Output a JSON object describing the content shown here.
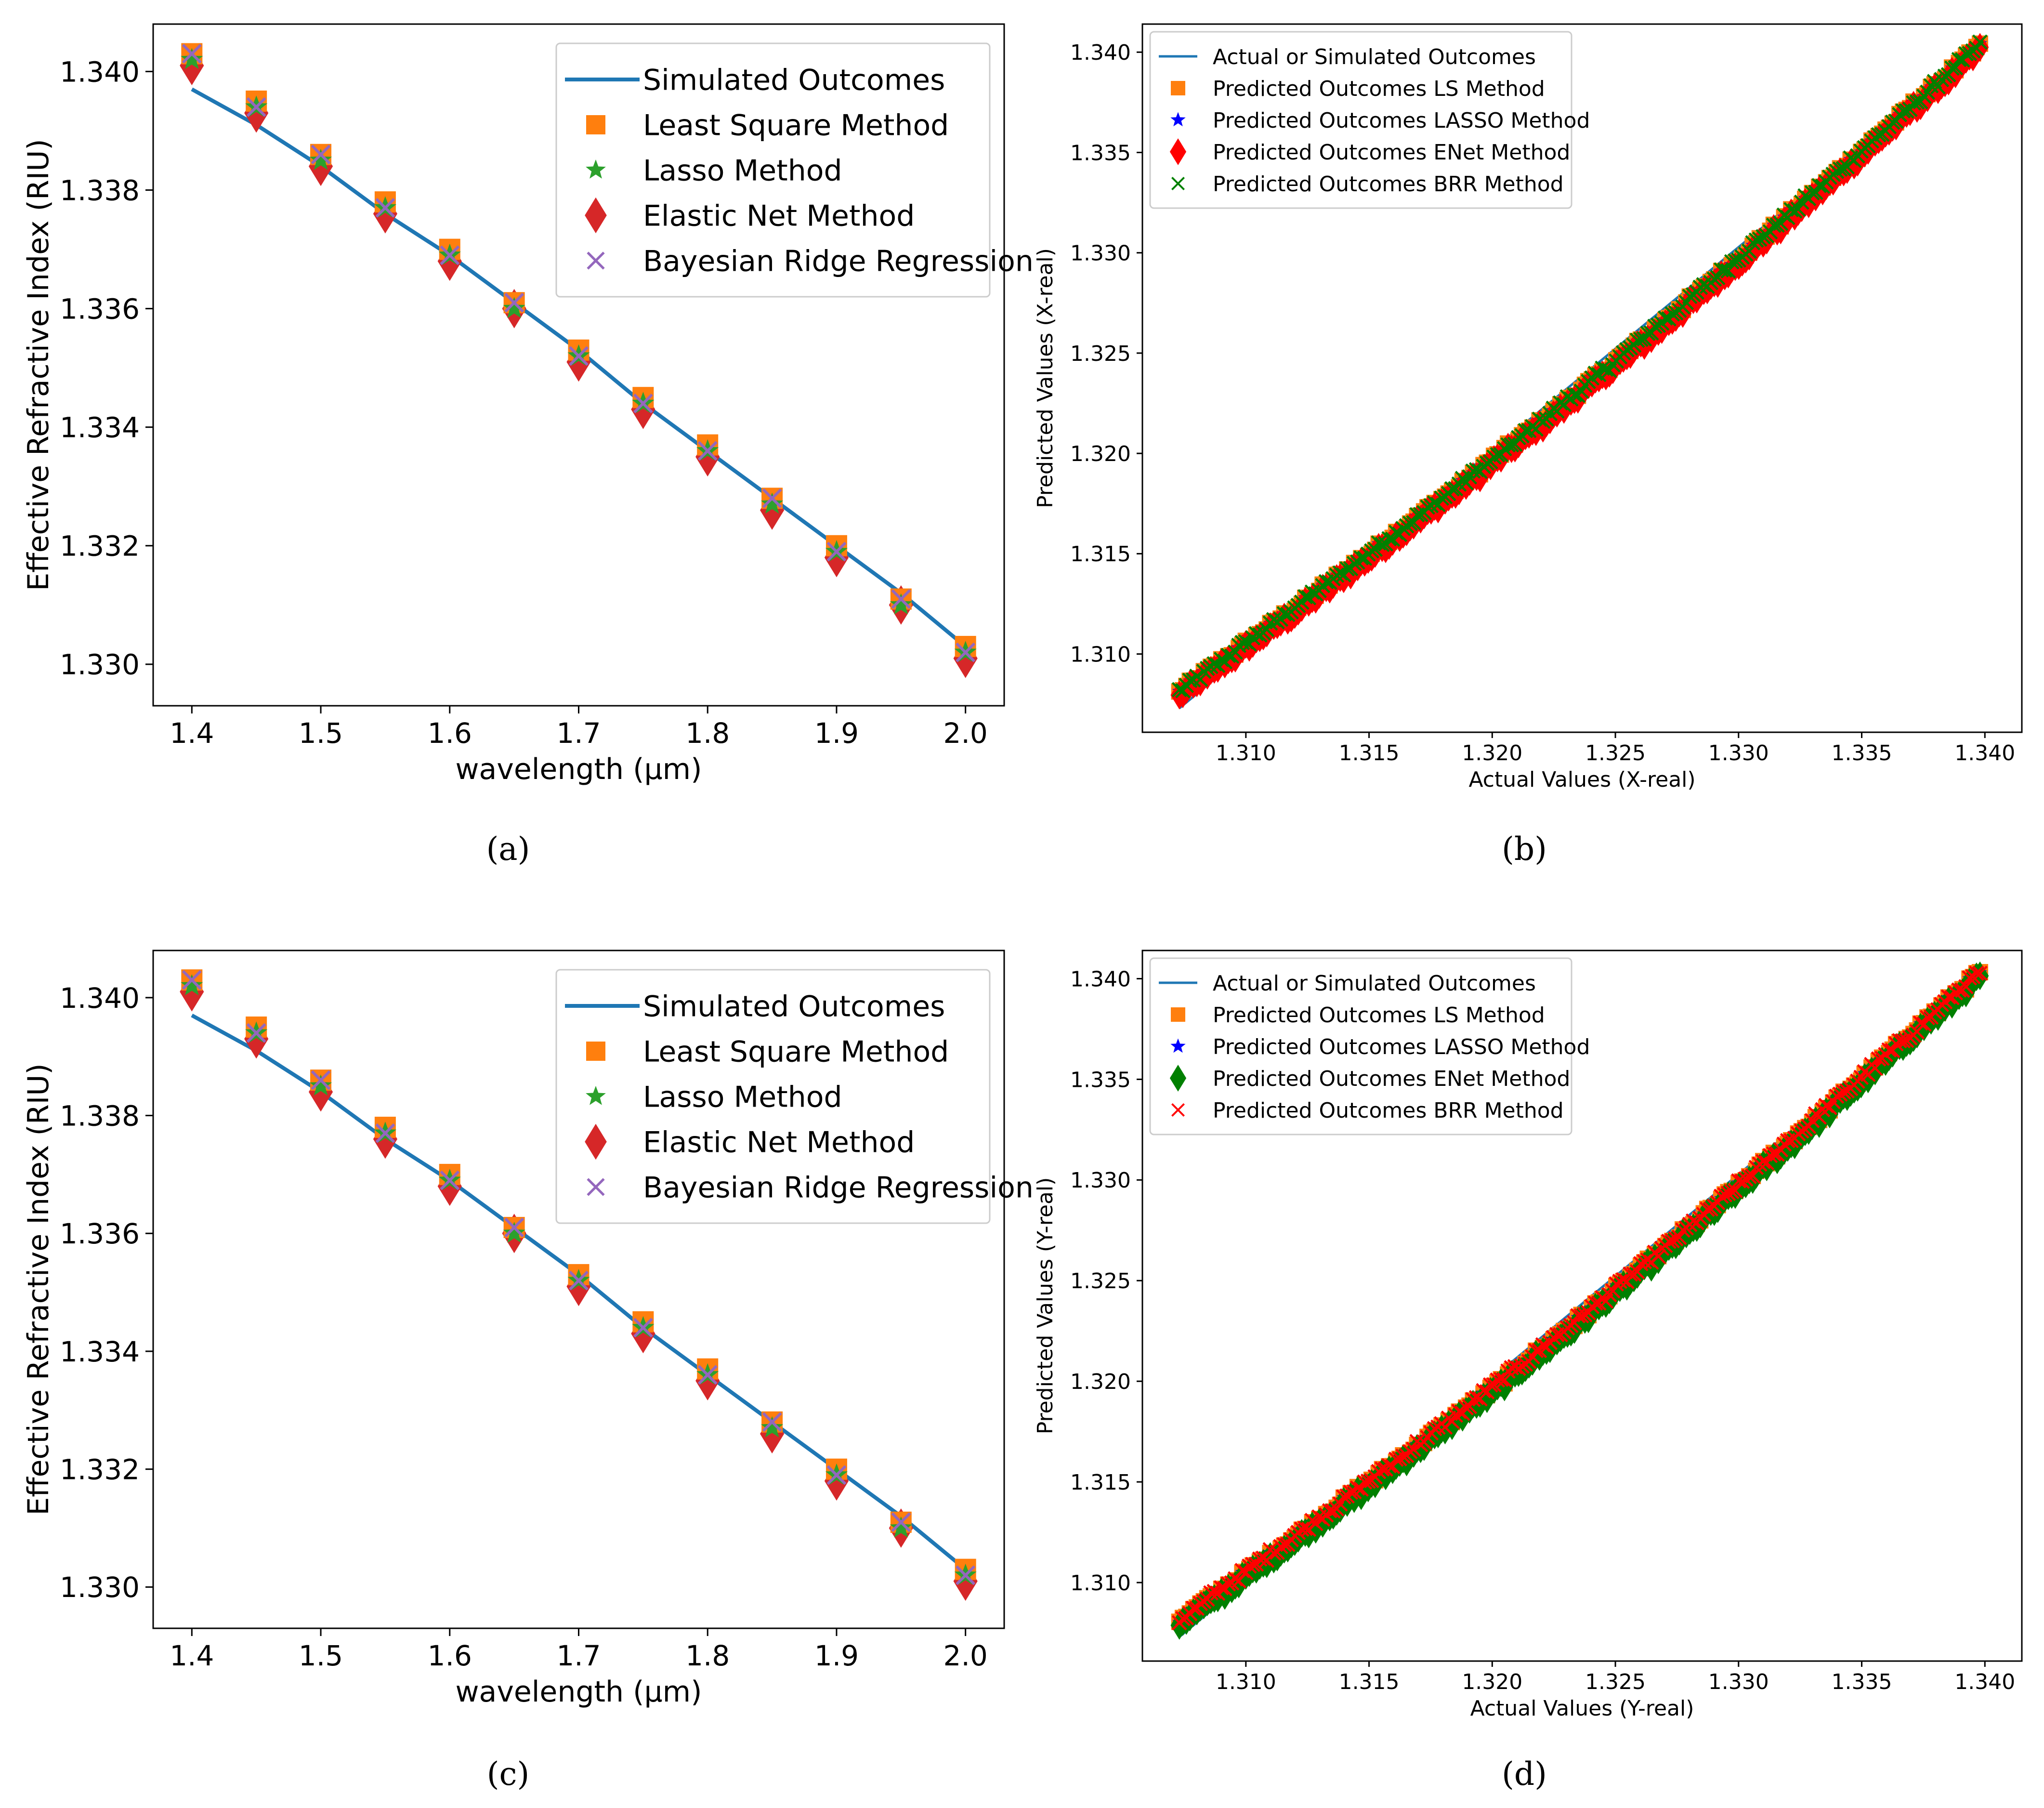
{
  "colors": {
    "sim_line": "#1f77b4",
    "ls": "#ff7f0e",
    "lasso": "#2ca02c",
    "enet": "#d62728",
    "brr": "#9467bd",
    "blue": "#0000ff",
    "red": "#ff0000",
    "green": "#008000"
  },
  "chart_data": [
    {
      "panel": "a",
      "caption": "(a)",
      "type": "line+scatter",
      "xlabel": "wavelength (μm)",
      "ylabel": "Effective Refractive Index (RIU)",
      "xlim": [
        1.37,
        2.03
      ],
      "ylim": [
        1.3293,
        1.3408
      ],
      "xticks": [
        1.4,
        1.5,
        1.6,
        1.7,
        1.8,
        1.9,
        2.0
      ],
      "xtick_labels": [
        "1.4",
        "1.5",
        "1.6",
        "1.7",
        "1.8",
        "1.9",
        "2.0"
      ],
      "yticks": [
        1.33,
        1.332,
        1.334,
        1.336,
        1.338,
        1.34
      ],
      "ytick_labels": [
        "1.330",
        "1.332",
        "1.334",
        "1.336",
        "1.338",
        "1.340"
      ],
      "legend_position": "top-right",
      "x": [
        1.4,
        1.45,
        1.5,
        1.55,
        1.6,
        1.65,
        1.7,
        1.75,
        1.8,
        1.85,
        1.9,
        1.95,
        2.0
      ],
      "series": [
        {
          "name": "Simulated Outcomes",
          "kind": "line",
          "color": "sim_line",
          "values": [
            1.3397,
            1.3391,
            1.3384,
            1.3376,
            1.3369,
            1.3361,
            1.3353,
            1.3344,
            1.3336,
            1.3328,
            1.332,
            1.3312,
            1.3303
          ]
        },
        {
          "name": "Least Square Method",
          "kind": "marker",
          "marker": "square",
          "color": "ls",
          "values": [
            1.3403,
            1.3395,
            1.3386,
            1.3378,
            1.337,
            1.3361,
            1.3353,
            1.3345,
            1.3337,
            1.3328,
            1.332,
            1.3311,
            1.3303
          ]
        },
        {
          "name": "Lasso Method",
          "kind": "marker",
          "marker": "star",
          "color": "lasso",
          "values": [
            1.3402,
            1.3394,
            1.3385,
            1.3377,
            1.3369,
            1.336,
            1.3352,
            1.3344,
            1.3336,
            1.3327,
            1.3319,
            1.331,
            1.3302
          ]
        },
        {
          "name": "Elastic Net Method",
          "kind": "marker",
          "marker": "thin_diamond",
          "color": "enet",
          "values": [
            1.3401,
            1.3393,
            1.3384,
            1.3376,
            1.3368,
            1.336,
            1.3351,
            1.3343,
            1.3335,
            1.3326,
            1.3318,
            1.331,
            1.3301
          ]
        },
        {
          "name": "Bayesian Ridge Regression",
          "kind": "marker",
          "marker": "x",
          "color": "brr",
          "values": [
            1.3403,
            1.3394,
            1.3386,
            1.3377,
            1.3369,
            1.3361,
            1.3352,
            1.3344,
            1.3336,
            1.3328,
            1.3319,
            1.3311,
            1.3302
          ]
        }
      ]
    },
    {
      "panel": "b",
      "caption": "(b)",
      "type": "line+scatter",
      "xlabel": "Actual Values (X-real)",
      "ylabel": "Predicted Values (X-real)",
      "xlim": [
        1.3058,
        1.3415
      ],
      "ylim": [
        1.3061,
        1.3414
      ],
      "xticks": [
        1.31,
        1.315,
        1.32,
        1.325,
        1.33,
        1.335,
        1.34
      ],
      "xtick_labels": [
        "1.310",
        "1.315",
        "1.320",
        "1.325",
        "1.330",
        "1.335",
        "1.340"
      ],
      "yticks": [
        1.31,
        1.315,
        1.32,
        1.325,
        1.33,
        1.335,
        1.34
      ],
      "ytick_labels": [
        "1.310",
        "1.315",
        "1.320",
        "1.325",
        "1.330",
        "1.335",
        "1.340"
      ],
      "legend_position": "top-left",
      "actual_range": [
        1.3073,
        1.3398
      ],
      "predicted_range": [
        1.3081,
        1.3403
      ],
      "series": [
        {
          "name": "Actual or Simulated Outcomes",
          "kind": "line",
          "color": "sim_line"
        },
        {
          "name": "Predicted Outcomes LS Method",
          "kind": "marker",
          "marker": "square",
          "color": "ls"
        },
        {
          "name": "Predicted Outcomes LASSO Method",
          "kind": "marker",
          "marker": "star",
          "color": "blue"
        },
        {
          "name": "Predicted Outcomes ENet Method",
          "kind": "marker",
          "marker": "thin_diamond",
          "color": "red"
        },
        {
          "name": " Predicted Outcomes BRR Method",
          "kind": "marker",
          "marker": "x",
          "color": "green"
        }
      ],
      "draw_order": [
        "ls",
        "lasso",
        "enet",
        "brr"
      ]
    },
    {
      "panel": "c",
      "caption": "(c)",
      "type": "line+scatter",
      "xlabel": "wavelength (μm)",
      "ylabel": "Effective Refractive Index (RIU)",
      "xlim": [
        1.37,
        2.03
      ],
      "ylim": [
        1.3293,
        1.3408
      ],
      "xticks": [
        1.4,
        1.5,
        1.6,
        1.7,
        1.8,
        1.9,
        2.0
      ],
      "xtick_labels": [
        "1.4",
        "1.5",
        "1.6",
        "1.7",
        "1.8",
        "1.9",
        "2.0"
      ],
      "yticks": [
        1.33,
        1.332,
        1.334,
        1.336,
        1.338,
        1.34
      ],
      "ytick_labels": [
        "1.330",
        "1.332",
        "1.334",
        "1.336",
        "1.338",
        "1.340"
      ],
      "legend_position": "top-right",
      "x": [
        1.4,
        1.45,
        1.5,
        1.55,
        1.6,
        1.65,
        1.7,
        1.75,
        1.8,
        1.85,
        1.9,
        1.95,
        2.0
      ],
      "series": [
        {
          "name": "Simulated Outcomes",
          "kind": "line",
          "color": "sim_line",
          "values": [
            1.3397,
            1.3391,
            1.3384,
            1.3376,
            1.3369,
            1.3361,
            1.3353,
            1.3344,
            1.3336,
            1.3328,
            1.332,
            1.3312,
            1.3303
          ]
        },
        {
          "name": "Least Square Method",
          "kind": "marker",
          "marker": "square",
          "color": "ls",
          "values": [
            1.3403,
            1.3395,
            1.3386,
            1.3378,
            1.337,
            1.3361,
            1.3353,
            1.3345,
            1.3337,
            1.3328,
            1.332,
            1.3311,
            1.3303
          ]
        },
        {
          "name": "Lasso Method",
          "kind": "marker",
          "marker": "star",
          "color": "lasso",
          "values": [
            1.3402,
            1.3394,
            1.3385,
            1.3377,
            1.3369,
            1.336,
            1.3352,
            1.3344,
            1.3336,
            1.3327,
            1.3319,
            1.331,
            1.3302
          ]
        },
        {
          "name": "Elastic Net Method",
          "kind": "marker",
          "marker": "thin_diamond",
          "color": "enet",
          "values": [
            1.3401,
            1.3393,
            1.3384,
            1.3376,
            1.3368,
            1.336,
            1.3351,
            1.3343,
            1.3335,
            1.3326,
            1.3318,
            1.331,
            1.3301
          ]
        },
        {
          "name": "Bayesian Ridge Regression",
          "kind": "marker",
          "marker": "x",
          "color": "brr",
          "values": [
            1.3403,
            1.3394,
            1.3386,
            1.3377,
            1.3369,
            1.3361,
            1.3352,
            1.3344,
            1.3336,
            1.3328,
            1.3319,
            1.3311,
            1.3302
          ]
        }
      ]
    },
    {
      "panel": "d",
      "caption": "(d)",
      "type": "line+scatter",
      "xlabel": "Actual Values (Y-real)",
      "ylabel": "Predicted Values (Y-real)",
      "xlim": [
        1.3058,
        1.3415
      ],
      "ylim": [
        1.3061,
        1.3414
      ],
      "xticks": [
        1.31,
        1.315,
        1.32,
        1.325,
        1.33,
        1.335,
        1.34
      ],
      "xtick_labels": [
        "1.310",
        "1.315",
        "1.320",
        "1.325",
        "1.330",
        "1.335",
        "1.340"
      ],
      "yticks": [
        1.31,
        1.315,
        1.32,
        1.325,
        1.33,
        1.335,
        1.34
      ],
      "ytick_labels": [
        "1.310",
        "1.315",
        "1.320",
        "1.325",
        "1.330",
        "1.335",
        "1.340"
      ],
      "legend_position": "top-left",
      "actual_range": [
        1.3073,
        1.3398
      ],
      "predicted_range": [
        1.3081,
        1.3403
      ],
      "series": [
        {
          "name": "Actual or Simulated Outcomes",
          "kind": "line",
          "color": "sim_line"
        },
        {
          "name": "Predicted Outcomes LS Method",
          "kind": "marker",
          "marker": "square",
          "color": "ls"
        },
        {
          "name": "Predicted Outcomes LASSO Method",
          "kind": "marker",
          "marker": "star",
          "color": "blue"
        },
        {
          "name": "Predicted Outcomes ENet Method",
          "kind": "marker",
          "marker": "thin_diamond",
          "color": "green"
        },
        {
          "name": " Predicted Outcomes BRR Method",
          "kind": "marker",
          "marker": "x",
          "color": "red"
        }
      ],
      "draw_order": [
        "ls",
        "lasso",
        "enet",
        "brr"
      ]
    }
  ]
}
